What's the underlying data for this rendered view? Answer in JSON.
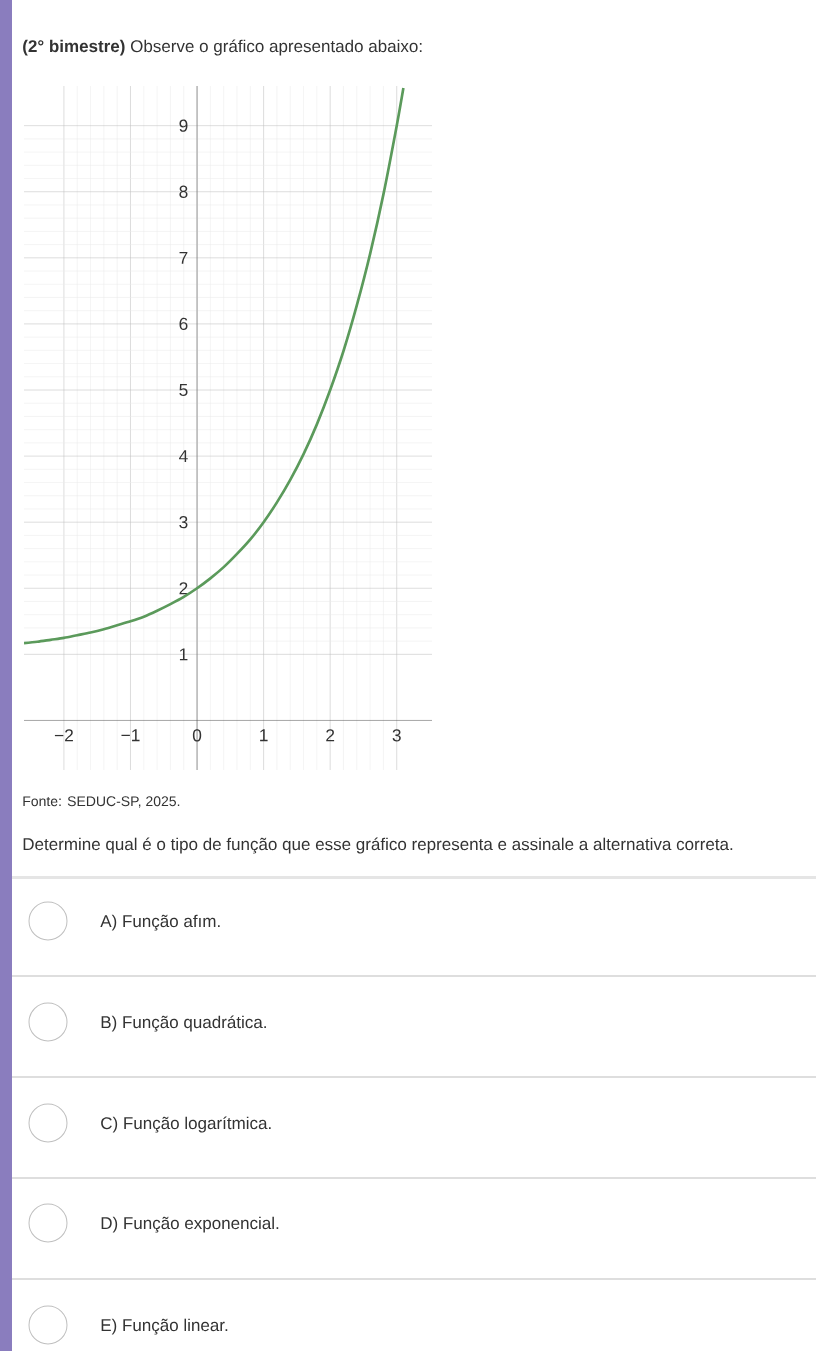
{
  "chart_data": {
    "type": "line",
    "title": "**(2° bimestre)** Observe o gráfico apresentado abaixo:",
    "x": [
      -2.6,
      -2.4,
      -2.2,
      -2,
      -1.8,
      -1.6,
      -1.4,
      -1.2,
      -1,
      -0.8,
      -0.6,
      -0.4,
      -0.2,
      0,
      0.2,
      0.4,
      0.6,
      0.8,
      1,
      1.2,
      1.4,
      1.6,
      1.8,
      2,
      2.2,
      2.4,
      2.6,
      2.8,
      3,
      3.1
    ],
    "series": [
      {
        "color": "#5b9a5b",
        "values": [
          1.17,
          1.19,
          1.22,
          1.25,
          1.29,
          1.33,
          1.38,
          1.44,
          1.5,
          1.57,
          1.66,
          1.76,
          1.87,
          2,
          2.15,
          2.32,
          2.52,
          2.74,
          3,
          3.3,
          3.64,
          4.03,
          4.48,
          5,
          5.59,
          6.28,
          7.06,
          7.96,
          9,
          9.57
        ]
      }
    ],
    "xlim": [
      -2.6,
      3.53
    ],
    "ylim": [
      -0.75,
      9.6
    ],
    "xticks": [
      {
        "value": -2,
        "label": "−2"
      },
      {
        "value": -1,
        "label": "−1"
      },
      0,
      1,
      2,
      3
    ],
    "yticks": [
      1,
      2,
      3,
      4,
      5,
      6,
      7,
      8,
      9
    ],
    "grid": true,
    "marker": "none",
    "line_style": "solid",
    "annotations": [
      "Fonte: SEDUC-SP, 2025.",
      "Determine qual é o tipo de função que esse gráfico representa e assinale a alternativa correta.",
      "A) Função afım.",
      "B) Função quadrática.",
      "C) Função logarítmica.",
      "D) Função exponencial.",
      "E) Função linear."
    ]
  }
}
